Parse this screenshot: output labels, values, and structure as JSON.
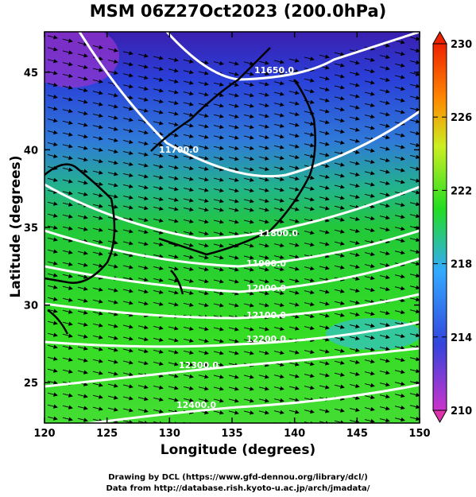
{
  "title": "MSM 06Z27Oct2023 (200.0hPa)",
  "x_axis": {
    "label": "Longitude (degrees)",
    "ticks": [
      "120",
      "125",
      "130",
      "135",
      "140",
      "145",
      "150"
    ],
    "range": [
      120,
      150
    ]
  },
  "y_axis": {
    "label": "Latitude  (degrees)",
    "ticks": [
      "25",
      "30",
      "35",
      "40",
      "45"
    ],
    "range": [
      22.4,
      47.6
    ]
  },
  "colorbar": {
    "ticks": [
      "230",
      "226",
      "222",
      "218",
      "214",
      "210"
    ],
    "range": [
      210,
      230
    ],
    "colors": [
      "#cc33cc",
      "#3344dd",
      "#33aaff",
      "#22dd22",
      "#ccee22",
      "#ff8800",
      "#ee2200"
    ]
  },
  "contours": [
    {
      "label": "11650.0"
    },
    {
      "label": "11700.0"
    },
    {
      "label": "11800.0"
    },
    {
      "label": "11900.0"
    },
    {
      "label": "12000.0"
    },
    {
      "label": "12100.0"
    },
    {
      "label": "12200.0"
    },
    {
      "label": "12300.0"
    },
    {
      "label": "12400.0"
    }
  ],
  "credits": {
    "line1": "Drawing by DCL (https://www.gfd-dennou.org/library/dcl/)",
    "line2": "Data from http://database.rish.kyoto-u.ac.jp/arch/jmadata/"
  }
}
